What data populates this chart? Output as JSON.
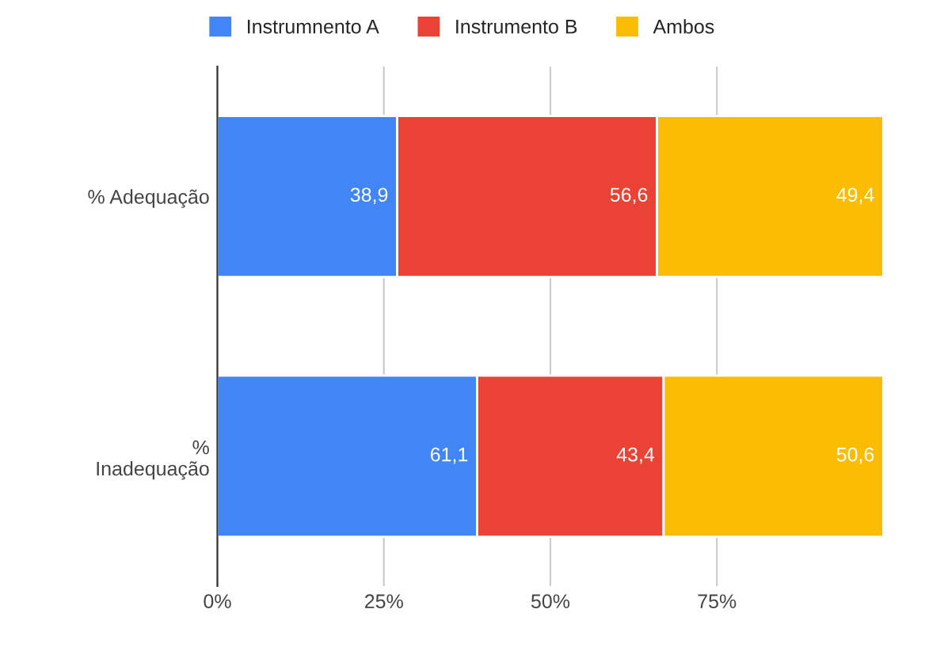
{
  "chart_data": {
    "type": "bar",
    "orientation": "horizontal",
    "stacked": true,
    "categories": [
      "% Adequação",
      "%\nInadequação"
    ],
    "series": [
      {
        "name": "Instrumnento A",
        "color": "#4285f4",
        "values": [
          27,
          39
        ]
      },
      {
        "name": "Instrumento B",
        "color": "#ea4335",
        "values": [
          39,
          28
        ]
      },
      {
        "name": "Ambos",
        "color": "#fbbc04",
        "values": [
          34,
          33
        ]
      }
    ],
    "annotations": [
      {
        "text": "38,9",
        "x": 27,
        "y": "% Adequação"
      },
      {
        "text": "56,6",
        "x": 66,
        "y": "% Adequação"
      },
      {
        "text": "49,4",
        "x": 100,
        "y": "% Adequação"
      },
      {
        "text": "61,1",
        "x": 39,
        "y": "%\nInadequação"
      },
      {
        "text": "43,4",
        "x": 67,
        "y": "%\nInadequação"
      },
      {
        "text": "50,6",
        "x": 100,
        "y": "%\nInadequação"
      }
    ],
    "xlim": [
      0,
      100
    ],
    "xticks": [
      {
        "value": 0,
        "label": "0%"
      },
      {
        "value": 25,
        "label": "25%"
      },
      {
        "value": 50,
        "label": "50%"
      },
      {
        "value": 75,
        "label": "75%"
      }
    ],
    "grid": "x",
    "legend": "top"
  }
}
